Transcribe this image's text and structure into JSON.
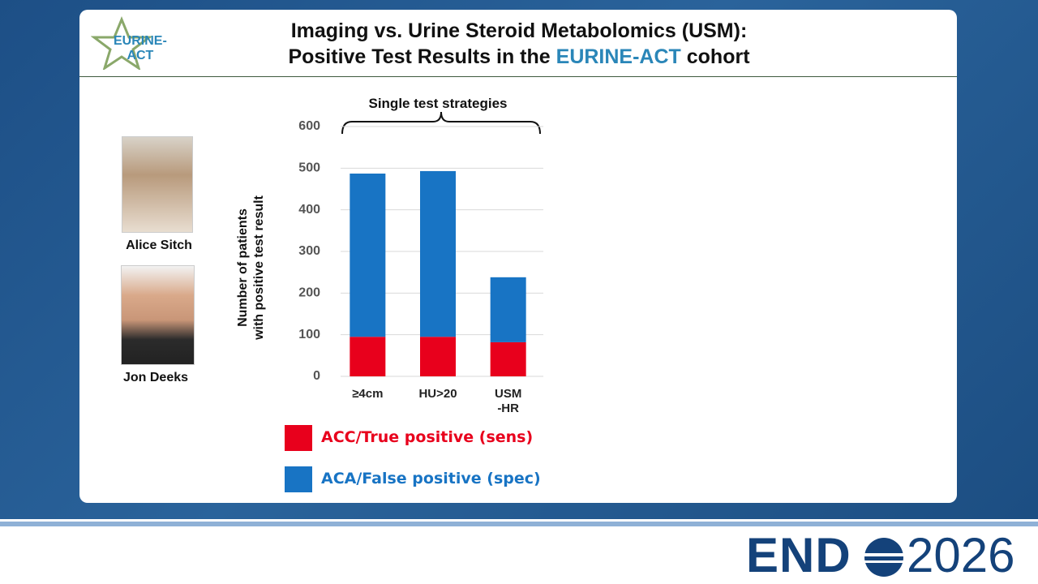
{
  "slide": {
    "title_line1": "Imaging vs. Urine Steroid Metabolomics (USM):",
    "title_line2": [
      "Positive Test Results in the ",
      "EURINE-ACT",
      " cohort"
    ],
    "logo_text": "EURINE-\nACT",
    "people": [
      "Alice Sitch",
      "Jon Deeks"
    ],
    "footer": {
      "brand": "END",
      "year": "2026"
    }
  },
  "chart_data": {
    "type": "stacked_bar",
    "annotation": "Single test strategies",
    "y_label": "Number of patients\nwith positive test result",
    "categories": [
      "≥4cm",
      "HU>20",
      "USM\n-HR"
    ],
    "series": [
      {
        "name": "ACC/True positive (sens)",
        "color": "#e8001c",
        "values": [
          95,
          95,
          82
        ]
      },
      {
        "name": "ACA/False positive (spec)",
        "color": "#1874c4",
        "values": [
          392,
          398,
          156
        ]
      }
    ],
    "ylim": [
      0,
      600
    ],
    "yticks": [
      0,
      100,
      200,
      300,
      400,
      500,
      600
    ],
    "grid": true
  }
}
